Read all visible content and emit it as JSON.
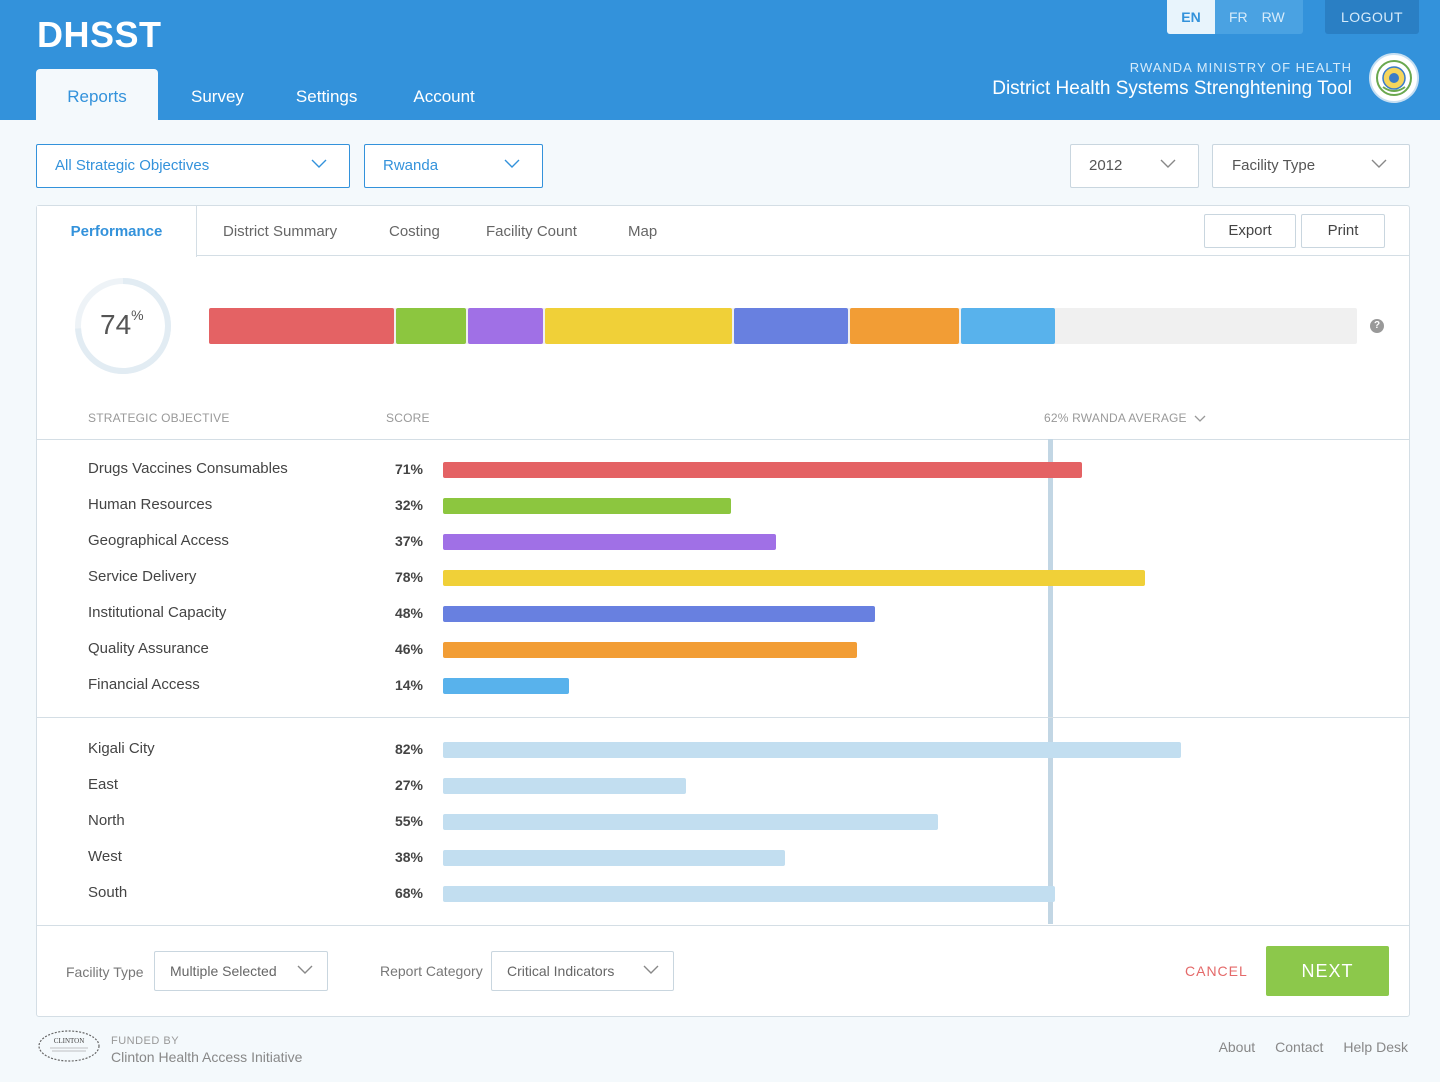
{
  "header": {
    "logo": "DHSST",
    "nav": [
      "Reports",
      "Survey",
      "Settings",
      "Account"
    ],
    "languages": [
      "EN",
      "FR",
      "RW"
    ],
    "logout": "LOGOUT",
    "ministry": "RWANDA MINISTRY OF HEALTH",
    "tool_name": "District Health Systems Strenghtening Tool"
  },
  "filters": {
    "objectives": "All Strategic Objectives",
    "country": "Rwanda",
    "year": "2012",
    "facility_type": "Facility Type"
  },
  "tabs": [
    "Performance",
    "District Summary",
    "Costing",
    "Facility Count",
    "Map"
  ],
  "actions": {
    "export": "Export",
    "print": "Print"
  },
  "overall": {
    "value": "74",
    "unit": "%",
    "fraction": 0.74
  },
  "columns": {
    "objective": "STRATEGIC OBJECTIVE",
    "score": "SCORE",
    "average": "62% RWANDA AVERAGE"
  },
  "colors": {
    "red": "#e46264",
    "green": "#8cc63f",
    "purple": "#a070e6",
    "yellow": "#f0d038",
    "blue": "#6880e0",
    "orange": "#f29d35",
    "sky": "#58b2ec",
    "light": "#c2def0"
  },
  "overall_segments": [
    {
      "color": "#e46264",
      "share": 0.163
    },
    {
      "color": "#8cc63f",
      "share": 0.063
    },
    {
      "color": "#a070e6",
      "share": 0.067
    },
    {
      "color": "#f0d038",
      "share": 0.165
    },
    {
      "color": "#6880e0",
      "share": 0.101
    },
    {
      "color": "#f29d35",
      "share": 0.097
    },
    {
      "color": "#58b2ec",
      "share": 0.084
    }
  ],
  "objectives": [
    {
      "label": "Drugs Vaccines Consumables",
      "score": "71%",
      "color": "#e46264",
      "bar_fraction": 0.71
    },
    {
      "label": "Human Resources",
      "score": "32%",
      "color": "#8cc63f",
      "bar_fraction": 0.32
    },
    {
      "label": "Geographical Access",
      "score": "37%",
      "color": "#a070e6",
      "bar_fraction": 0.37
    },
    {
      "label": "Service Delivery",
      "score": "78%",
      "color": "#f0d038",
      "bar_fraction": 0.78
    },
    {
      "label": "Institutional Capacity",
      "score": "48%",
      "color": "#6880e0",
      "bar_fraction": 0.48
    },
    {
      "label": "Quality Assurance",
      "score": "46%",
      "color": "#f29d35",
      "bar_fraction": 0.46
    },
    {
      "label": "Financial Access",
      "score": "14%",
      "color": "#58b2ec",
      "bar_fraction": 0.14
    }
  ],
  "regions": [
    {
      "label": "Kigali City",
      "score": "82%",
      "bar_fraction": 0.82
    },
    {
      "label": "East",
      "score": "27%",
      "bar_fraction": 0.27
    },
    {
      "label": "North",
      "score": "55%",
      "bar_fraction": 0.55
    },
    {
      "label": "West",
      "score": "38%",
      "bar_fraction": 0.38
    },
    {
      "label": "South",
      "score": "68%",
      "bar_fraction": 0.68
    }
  ],
  "footer_form": {
    "facility_label": "Facility Type",
    "facility_value": "Multiple Selected",
    "category_label": "Report Category",
    "category_value": "Critical Indicators",
    "cancel": "CANCEL",
    "next": "NEXT"
  },
  "footer": {
    "logo_text": "CLINTON",
    "funded_by": "FUNDED BY",
    "funder": "Clinton Health Access Initiative",
    "links": [
      "About",
      "Contact",
      "Help Desk"
    ]
  }
}
